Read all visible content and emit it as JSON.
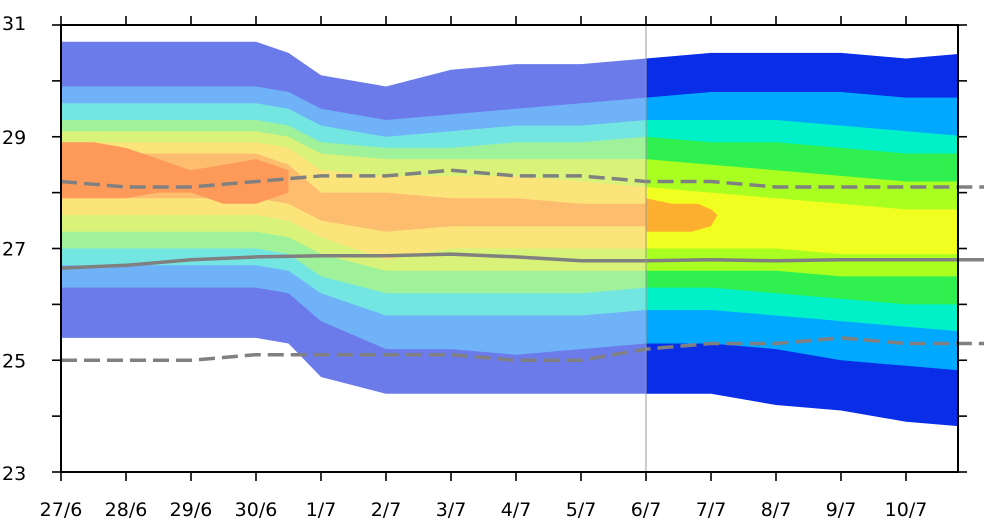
{
  "chart_data": {
    "type": "area",
    "title": "",
    "xlabel": "",
    "ylabel": "",
    "x_tick_labels": [
      "27/6",
      "28/6",
      "29/6",
      "30/6",
      "1/7",
      "2/7",
      "3/7",
      "4/7",
      "5/7",
      "6/7",
      "7/7",
      "8/7",
      "9/7",
      "10/7"
    ],
    "x_range_days": [
      0,
      14.8
    ],
    "ylim": [
      23,
      31
    ],
    "y_ticks": [
      23,
      25,
      27,
      29,
      31
    ],
    "y_minor_ticks": [
      24,
      26,
      28,
      30
    ],
    "divider_at_tick": "6/7",
    "grid": false,
    "band_x_days": [
      0,
      1,
      2,
      3,
      3.5,
      4,
      5,
      6,
      7,
      8,
      9,
      9.0001,
      10,
      11,
      12,
      13,
      14,
      14.8
    ],
    "band_colors_past": [
      "#6b7bea",
      "#6fb2f8",
      "#74e6e2",
      "#9ff29a",
      "#d9f27a",
      "#fbe57a",
      "#fdbd6e",
      "#fd9a5a"
    ],
    "band_colors_forecast": [
      "#0a2ee8",
      "#00a8ff",
      "#00f0c8",
      "#30f050",
      "#a8ff20",
      "#f0ff20"
    ],
    "bands": [
      {
        "lower": [
          25.4,
          25.4,
          25.4,
          25.4,
          25.3,
          24.7,
          24.4,
          24.4,
          24.4,
          24.4,
          24.4,
          24.4,
          24.4,
          24.2,
          24.1,
          23.9,
          23.8,
          23.8
        ],
        "upper": [
          30.7,
          30.7,
          30.7,
          30.7,
          30.5,
          30.1,
          29.9,
          30.2,
          30.3,
          30.3,
          30.4,
          30.4,
          30.5,
          30.5,
          30.5,
          30.4,
          30.5,
          30.6
        ]
      },
      {
        "lower": [
          26.3,
          26.3,
          26.3,
          26.3,
          26.2,
          25.7,
          25.2,
          25.2,
          25.1,
          25.2,
          25.3,
          25.3,
          25.3,
          25.2,
          25.0,
          24.9,
          24.8,
          24.8
        ],
        "upper": [
          29.9,
          29.9,
          29.9,
          29.9,
          29.8,
          29.5,
          29.3,
          29.4,
          29.5,
          29.6,
          29.7,
          29.7,
          29.8,
          29.8,
          29.8,
          29.7,
          29.7,
          29.8
        ]
      },
      {
        "lower": [
          26.7,
          26.7,
          26.7,
          26.7,
          26.6,
          26.2,
          25.8,
          25.8,
          25.8,
          25.8,
          25.9,
          25.9,
          25.9,
          25.8,
          25.7,
          25.6,
          25.5,
          25.5
        ],
        "upper": [
          29.6,
          29.6,
          29.6,
          29.6,
          29.5,
          29.2,
          29.0,
          29.1,
          29.2,
          29.2,
          29.3,
          29.3,
          29.3,
          29.3,
          29.2,
          29.1,
          29.0,
          29.1
        ]
      },
      {
        "lower": [
          27.0,
          27.0,
          27.0,
          27.0,
          26.9,
          26.5,
          26.2,
          26.2,
          26.2,
          26.2,
          26.3,
          26.3,
          26.3,
          26.2,
          26.1,
          26.0,
          26.0,
          26.0
        ],
        "upper": [
          29.3,
          29.3,
          29.3,
          29.3,
          29.2,
          28.9,
          28.8,
          28.8,
          28.9,
          28.9,
          29.0,
          29.0,
          28.9,
          28.9,
          28.8,
          28.7,
          28.7,
          28.8
        ]
      },
      {
        "lower": [
          27.3,
          27.3,
          27.3,
          27.3,
          27.2,
          26.9,
          26.6,
          26.6,
          26.6,
          26.6,
          26.6,
          26.6,
          26.6,
          26.6,
          26.5,
          26.5,
          26.5,
          26.5
        ],
        "upper": [
          29.1,
          29.1,
          29.1,
          29.1,
          29.0,
          28.7,
          28.6,
          28.6,
          28.6,
          28.6,
          28.6,
          28.6,
          28.5,
          28.4,
          28.3,
          28.2,
          28.2,
          28.2
        ]
      },
      {
        "lower": [
          27.6,
          27.6,
          27.6,
          27.6,
          27.5,
          27.2,
          26.8,
          27.0,
          27.0,
          27.0,
          27.0,
          27.0,
          27.0,
          27.0,
          26.9,
          26.9,
          26.9,
          26.9
        ],
        "upper": [
          28.9,
          28.9,
          28.9,
          28.9,
          28.8,
          28.4,
          28.3,
          28.3,
          28.3,
          28.2,
          28.1,
          28.1,
          28.0,
          27.9,
          27.8,
          27.7,
          27.7,
          27.8
        ]
      },
      {
        "lower": [
          27.9,
          27.9,
          27.9,
          27.9,
          27.8,
          27.5,
          27.3,
          27.4,
          27.4,
          27.4,
          27.4,
          27.4,
          27.4,
          27.3,
          27.3,
          27.2,
          27.2,
          27.2
        ],
        "upper": [
          28.7,
          28.7,
          28.7,
          28.7,
          28.5,
          28.0,
          28.0,
          27.9,
          27.9,
          27.8,
          27.8,
          27.8,
          27.7,
          27.6,
          27.5,
          27.5,
          27.4,
          27.5
        ]
      }
    ],
    "warm_patch_past": {
      "x": [
        0,
        0.5,
        1,
        1.5,
        2,
        2.5,
        3,
        3.5,
        3.5,
        3.0,
        2.5,
        2.0,
        1.5,
        1.0,
        0.5,
        0
      ],
      "y": [
        28.9,
        28.9,
        28.8,
        28.6,
        28.4,
        28.5,
        28.6,
        28.4,
        28.0,
        27.8,
        27.8,
        28.0,
        28.0,
        27.9,
        27.9,
        27.9
      ]
    },
    "warm_patch_forecast": {
      "x": [
        9,
        9.4,
        9.8,
        10.0,
        10.1,
        10.0,
        9.7,
        9.3,
        9
      ],
      "y": [
        27.9,
        27.8,
        27.8,
        27.7,
        27.6,
        27.4,
        27.3,
        27.3,
        27.3
      ]
    },
    "series": [
      {
        "style": "dashed",
        "color": "#808080",
        "x": [
          0,
          1,
          2,
          3,
          4,
          5,
          6,
          7,
          8,
          9,
          10,
          11,
          12,
          13,
          14,
          14.8
        ],
        "values": [
          28.2,
          28.1,
          28.1,
          28.2,
          28.3,
          28.3,
          28.4,
          28.3,
          28.3,
          28.2,
          28.2,
          28.1,
          28.1,
          28.1,
          28.1,
          28.1
        ]
      },
      {
        "style": "solid",
        "color": "#808080",
        "x": [
          0,
          1,
          2,
          3,
          4,
          5,
          6,
          7,
          8,
          9,
          10,
          11,
          12,
          13,
          14,
          14.8
        ],
        "values": [
          26.65,
          26.7,
          26.8,
          26.85,
          26.87,
          26.87,
          26.9,
          26.85,
          26.78,
          26.78,
          26.8,
          26.78,
          26.8,
          26.8,
          26.8,
          26.8
        ]
      },
      {
        "style": "dashed",
        "color": "#808080",
        "x": [
          0,
          1,
          2,
          3,
          4,
          5,
          6,
          7,
          8,
          9,
          10,
          11,
          12,
          13,
          14,
          14.8
        ],
        "values": [
          25.0,
          25.0,
          25.0,
          25.1,
          25.1,
          25.1,
          25.1,
          25.0,
          25.0,
          25.2,
          25.3,
          25.3,
          25.4,
          25.3,
          25.3,
          25.3
        ]
      }
    ]
  }
}
